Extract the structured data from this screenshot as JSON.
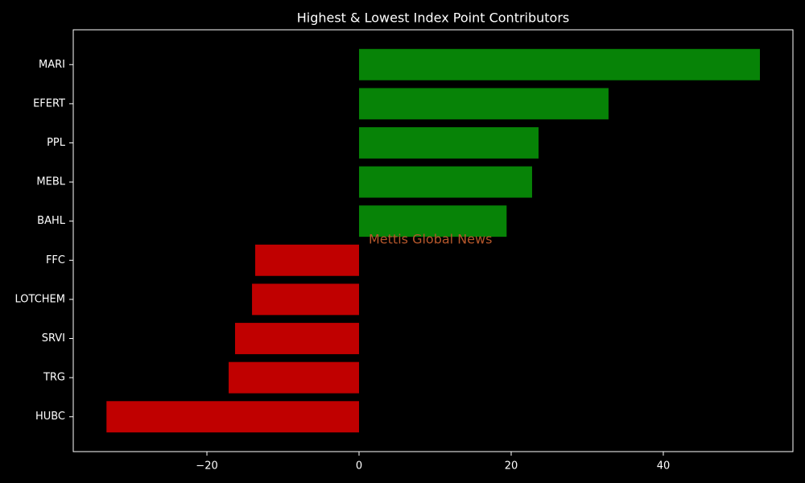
{
  "chart_data": {
    "type": "barh",
    "title": "Highest & Lowest Index Point Contributors",
    "categories": [
      "MARI",
      "EFERT",
      "PPL",
      "MEBL",
      "BAHL",
      "FFC",
      "LOTCHEM",
      "SRVI",
      "TRG",
      "HUBC"
    ],
    "values": [
      52.7,
      32.8,
      23.6,
      22.75,
      19.4,
      -13.65,
      -14.07,
      -16.3,
      -17.14,
      -33.2
    ],
    "colors": [
      "#078307",
      "#078307",
      "#078307",
      "#078307",
      "#078307",
      "#c00000",
      "#c00000",
      "#c00000",
      "#c00000",
      "#c00000"
    ],
    "xlim": [
      -37.57,
      57.04
    ],
    "xticks": [
      {
        "value": -20,
        "label": "−20"
      },
      0,
      20,
      40
    ],
    "annotation": "Mettis Global News"
  }
}
